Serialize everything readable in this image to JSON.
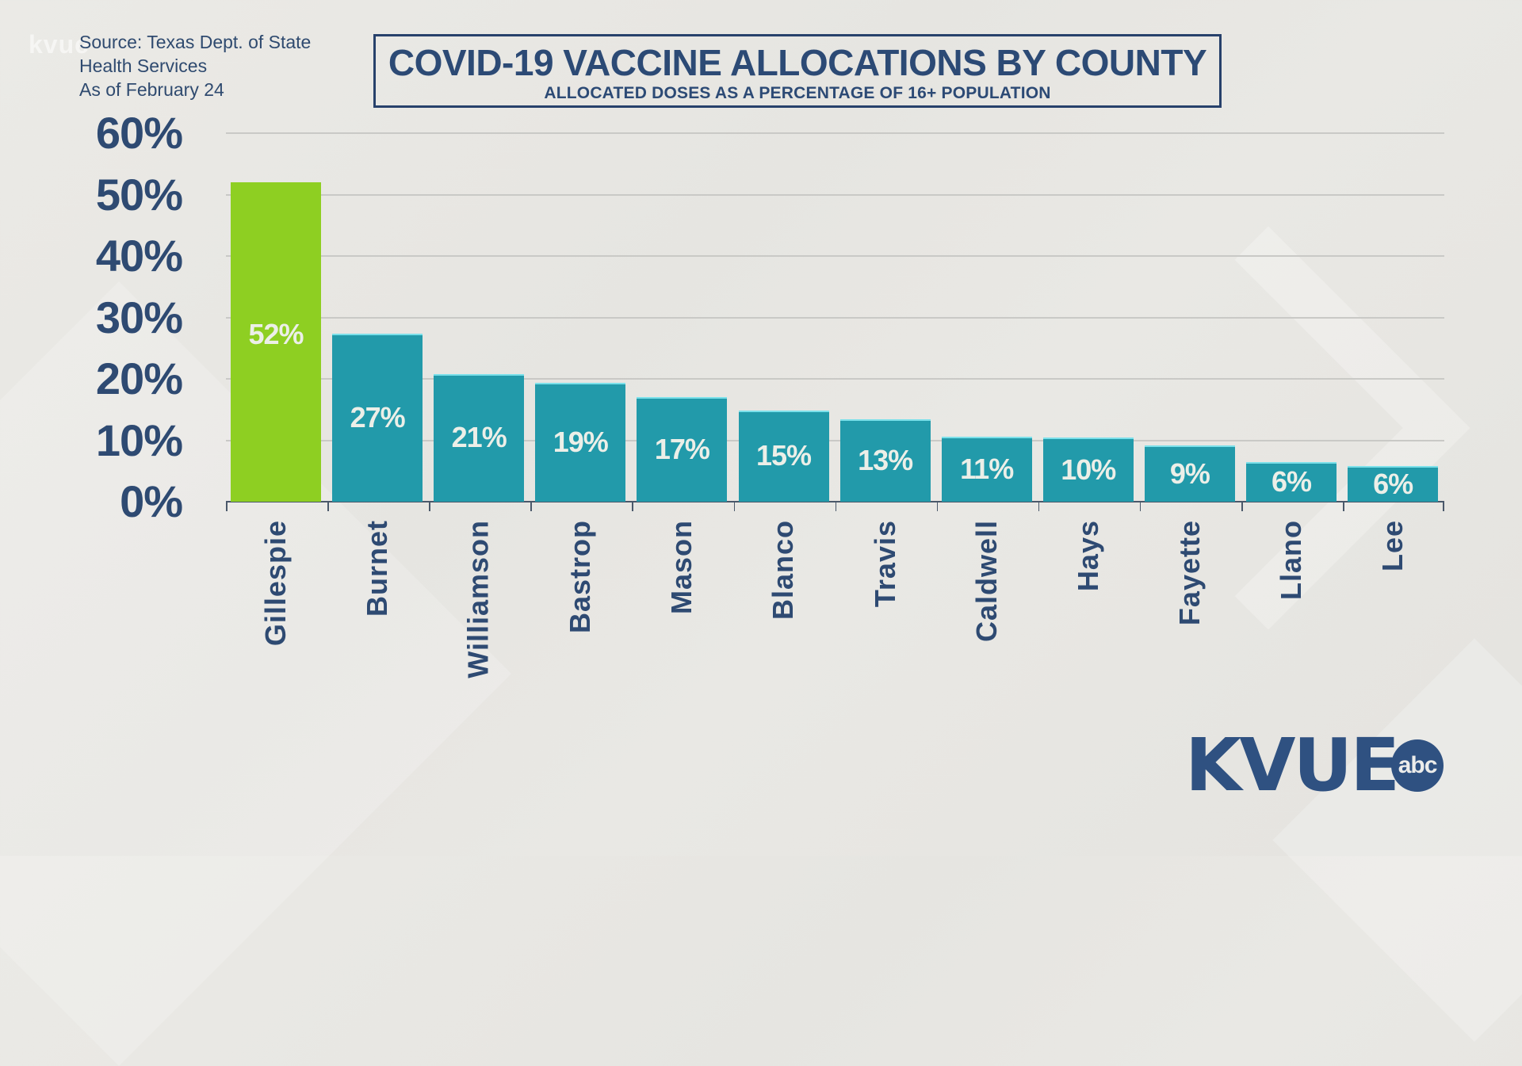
{
  "watermark": "kvue",
  "source": {
    "line1": "Source: Texas Dept. of State",
    "line2": "Health Services",
    "line3": "As of February 24"
  },
  "header": {
    "title": "COVID-19 VACCINE ALLOCATIONS BY COUNTY",
    "subtitle": "ALLOCATED DOSES AS A PERCENTAGE OF 16+ POPULATION"
  },
  "logo": {
    "text": "KVUE",
    "badge": "abc"
  },
  "colors": {
    "highlight_bar": "#8ecf22",
    "bar": "#229aaa",
    "text": "#2e4a72",
    "background": "#e8e7e3"
  },
  "chart_data": {
    "type": "bar",
    "title": "COVID-19 VACCINE ALLOCATIONS BY COUNTY",
    "subtitle": "ALLOCATED DOSES AS A PERCENTAGE OF 16+ POPULATION",
    "xlabel": "",
    "ylabel": "",
    "ylim": [
      0,
      60
    ],
    "yticks": [
      "0%",
      "10%",
      "20%",
      "30%",
      "40%",
      "50%",
      "60%"
    ],
    "grid": true,
    "legend": null,
    "categories": [
      "Gillespie",
      "Burnet",
      "Williamson",
      "Bastrop",
      "Mason",
      "Blanco",
      "Travis",
      "Caldwell",
      "Hays",
      "Fayette",
      "Llano",
      "Lee"
    ],
    "values": [
      52,
      27,
      21,
      19,
      17,
      15,
      13,
      11,
      10,
      9,
      6,
      6
    ],
    "value_labels": [
      "52%",
      "27%",
      "21%",
      "19%",
      "17%",
      "15%",
      "13%",
      "11%",
      "10%",
      "9%",
      "6%",
      "6%"
    ],
    "rendered_heights_pct": [
      52,
      27.3,
      20.8,
      19.4,
      17,
      14.9,
      13.4,
      10.6,
      10.4,
      9.1,
      6.5,
      5.8
    ],
    "highlighted": "Gillespie",
    "annotations": [
      "Source: Texas Dept. of State Health Services",
      "As of February 24"
    ]
  }
}
